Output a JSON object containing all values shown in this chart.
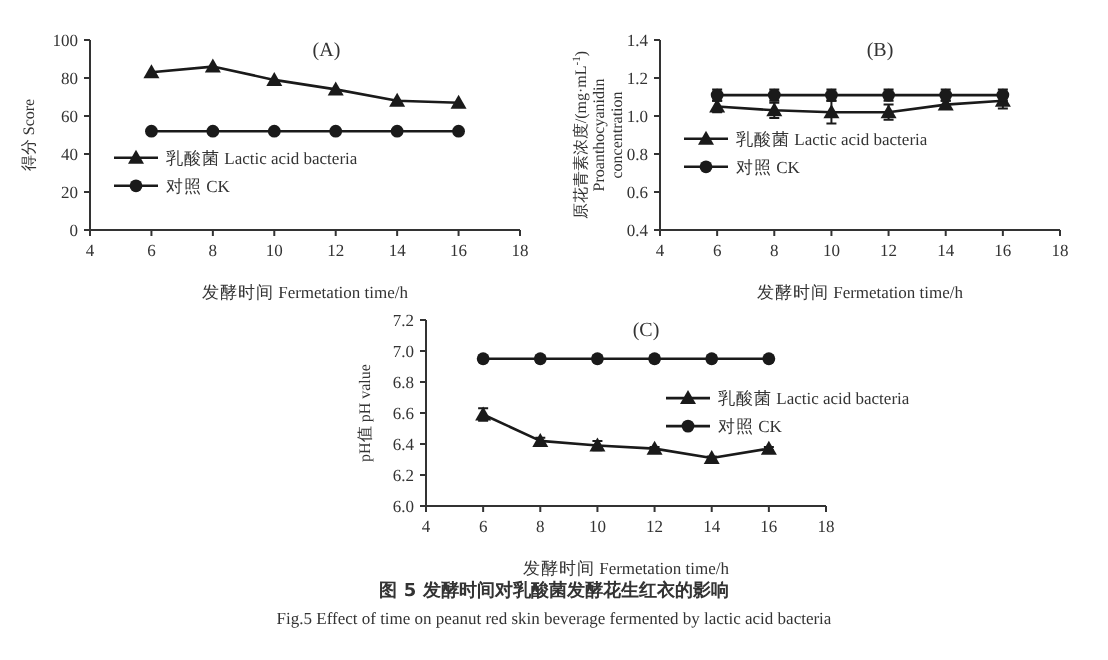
{
  "chart_data": [
    {
      "type": "line",
      "title": "(A)",
      "xlabel": "发酵时间  Fermetation time/h",
      "ylabel": "得分  Score",
      "x": [
        6,
        8,
        10,
        12,
        14,
        16
      ],
      "xlim": [
        4,
        18
      ],
      "xticks": [
        4,
        6,
        8,
        10,
        12,
        14,
        16,
        18
      ],
      "ylim": [
        0,
        100
      ],
      "yticks": [
        0,
        20,
        40,
        60,
        80,
        100
      ],
      "grid": false,
      "legend": "bottom left",
      "line_style": "solid",
      "series": [
        {
          "name": "乳酸菌 Lactic acid bacteria",
          "color": "#1a1a1a",
          "marker": "triangle",
          "values": [
            83,
            86,
            79,
            74,
            68,
            67
          ]
        },
        {
          "name": "对照 CK",
          "color": "#1a1a1a",
          "marker": "circle",
          "values": [
            52,
            52,
            52,
            52,
            52,
            52
          ]
        }
      ]
    },
    {
      "type": "line",
      "title": "(B)",
      "xlabel": "发酵时间  Fermetation time/h",
      "ylabel": "原花青素浓度/(mg·mL$^{-1}$)\nProanthocyanidin\nconcentration",
      "x": [
        6,
        8,
        10,
        12,
        14,
        16
      ],
      "xlim": [
        4,
        18
      ],
      "xticks": [
        4,
        6,
        8,
        10,
        12,
        14,
        16,
        18
      ],
      "ylim": [
        0.4,
        1.4
      ],
      "yticks": [
        {
          "value": 0.4,
          "label": "0.4"
        },
        {
          "value": 0.6,
          "label": "0.6"
        },
        {
          "value": 0.8,
          "label": "0.8"
        },
        {
          "value": 1.0,
          "label": "1.0"
        },
        {
          "value": 1.2,
          "label": "1.2"
        },
        {
          "value": 1.4,
          "label": "1.4"
        }
      ],
      "grid": false,
      "legend": "left",
      "line_style": "solid",
      "series": [
        {
          "name": "乳酸菌 Lactic acid bacteria",
          "color": "#1a1a1a",
          "marker": "triangle",
          "values": [
            1.05,
            1.03,
            1.02,
            1.02,
            1.06,
            1.08
          ],
          "errors": [
            0.03,
            0.04,
            0.06,
            0.04,
            0.02,
            0.04
          ]
        },
        {
          "name": "对照 CK",
          "color": "#1a1a1a",
          "marker": "circle",
          "values": [
            1.11,
            1.11,
            1.11,
            1.11,
            1.11,
            1.11
          ],
          "errors": [
            0.03,
            0.03,
            0.03,
            0.03,
            0.03,
            0.03
          ]
        }
      ]
    },
    {
      "type": "line",
      "title": "(C)",
      "xlabel": "发酵时间  Fermetation time/h",
      "ylabel": "pH值  pH value",
      "x": [
        6,
        8,
        10,
        12,
        14,
        16
      ],
      "xlim": [
        4,
        18
      ],
      "xticks": [
        4,
        6,
        8,
        10,
        12,
        14,
        16,
        18
      ],
      "ylim": [
        6.0,
        7.2
      ],
      "yticks": [
        {
          "value": 6.0,
          "label": "6.0"
        },
        {
          "value": 6.2,
          "label": "6.2"
        },
        {
          "value": 6.4,
          "label": "6.4"
        },
        {
          "value": 6.6,
          "label": "6.6"
        },
        {
          "value": 6.8,
          "label": "6.8"
        },
        {
          "value": 7.0,
          "label": "7.0"
        },
        {
          "value": 7.2,
          "label": "7.2"
        }
      ],
      "grid": false,
      "legend": "right",
      "line_style": "solid",
      "series": [
        {
          "name": "乳酸菌 Lactic acid bacteria",
          "color": "#1a1a1a",
          "marker": "triangle",
          "values": [
            6.59,
            6.42,
            6.39,
            6.37,
            6.31,
            6.37
          ],
          "errors": [
            0.04,
            0.02,
            0.03,
            0.01,
            0.01,
            0.01
          ]
        },
        {
          "name": "对照 CK",
          "color": "#1a1a1a",
          "marker": "circle",
          "values": [
            6.95,
            6.95,
            6.95,
            6.95,
            6.95,
            6.95
          ],
          "errors": [
            0.02,
            0.02,
            0.02,
            0.02,
            0.02,
            0.02
          ]
        }
      ],
      "annotations": [
        "图 5  发酵时间对乳酸菌发酵花生红衣的影响",
        "Fig.5   Effect of time on peanut red skin beverage fermented by lactic acid bacteria"
      ]
    }
  ]
}
